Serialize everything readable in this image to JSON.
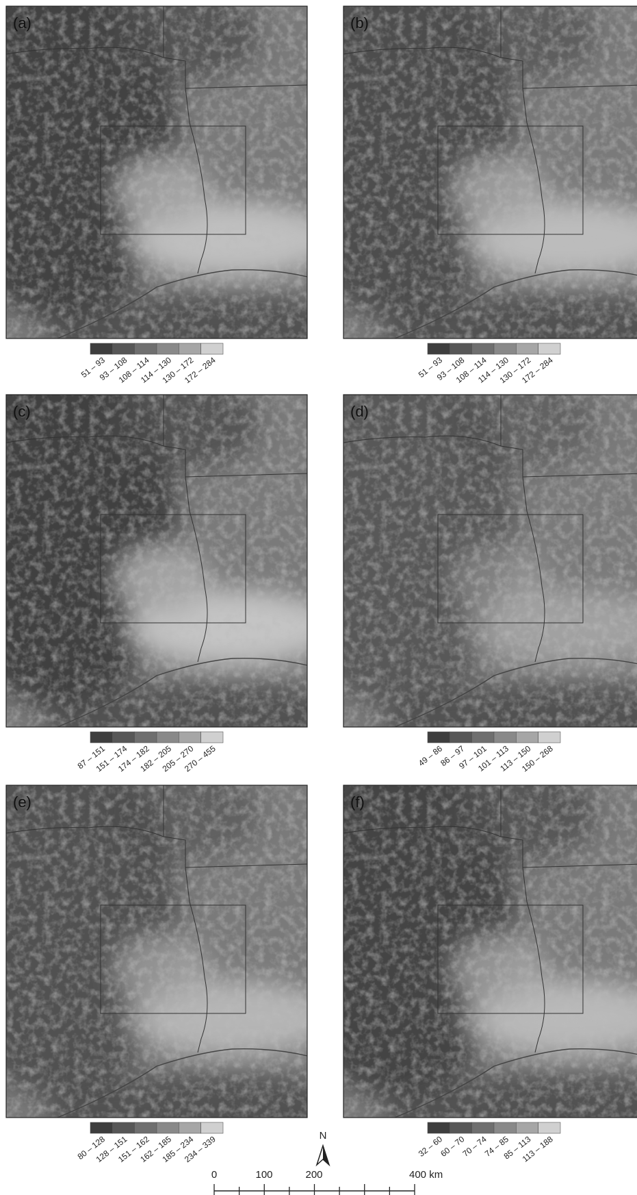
{
  "panels": [
    {
      "label": "(a)",
      "legend": [
        "51 – 93",
        "93 – 108",
        "108 – 114",
        "114 – 130",
        "130 – 172",
        "172 – 284"
      ]
    },
    {
      "label": "(b)",
      "legend": [
        "51 – 93",
        "93 – 108",
        "108 – 114",
        "114 – 130",
        "130 – 172",
        "172 – 284"
      ]
    },
    {
      "label": "(c)",
      "legend": [
        "87 – 151",
        "151 – 174",
        "174 – 182",
        "182 – 205",
        "205 – 270",
        "270 – 455"
      ]
    },
    {
      "label": "(d)",
      "legend": [
        "49 – 86",
        "86 – 97",
        "97 – 101",
        "101 – 113",
        "113 – 150",
        "150 – 268"
      ]
    },
    {
      "label": "(e)",
      "legend": [
        "80 – 128",
        "128 – 151",
        "151 – 162",
        "162 – 185",
        "185 – 234",
        "234 – 339"
      ]
    },
    {
      "label": "(f)",
      "legend": [
        "32 – 60",
        "60 – 70",
        "70 – 74",
        "74 – 85",
        "85 – 113",
        "113 – 188"
      ]
    }
  ],
  "north": "N",
  "scale_bar": {
    "labels": [
      "0",
      "100",
      "200",
      "400 km"
    ]
  }
}
